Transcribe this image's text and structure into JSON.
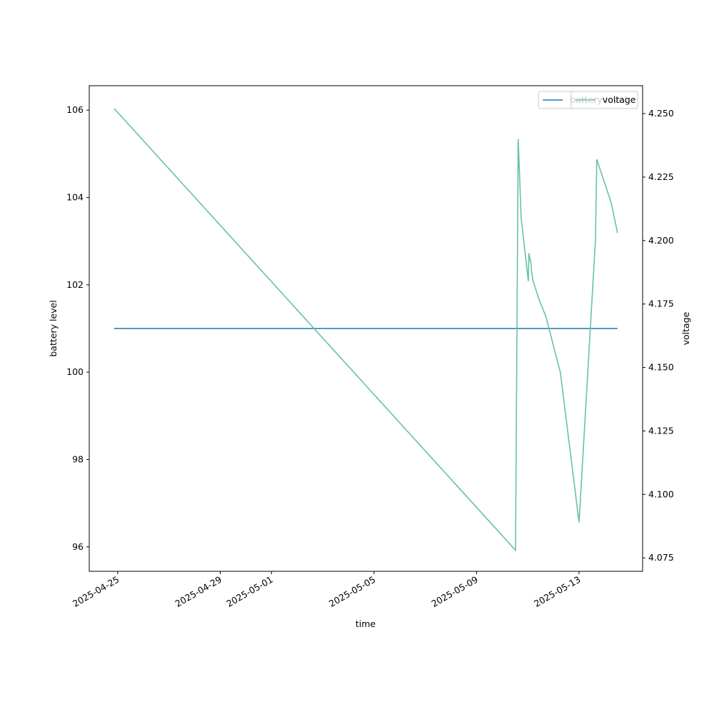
{
  "chart_data": {
    "type": "line",
    "xlabel": "time",
    "ylabel": "battery level",
    "y2label": "voltage",
    "xlim": [
      "2025-04-23T21:20",
      "2025-05-15T11:30"
    ],
    "xticks": [
      "2025-04-25",
      "2025-04-29",
      "2025-05-01",
      "2025-05-05",
      "2025-05-09",
      "2025-05-13"
    ],
    "ylim": [
      95.44,
      106.56
    ],
    "yticks": [
      96,
      98,
      100,
      102,
      104,
      106
    ],
    "y2lim": [
      4.0697,
      4.261
    ],
    "y2ticks": [
      4.075,
      {
        "value": 4.1,
        "label": "4.100"
      },
      4.125,
      {
        "value": 4.15,
        "label": "4.150"
      },
      4.175,
      {
        "value": 4.2,
        "label": "4.200"
      },
      4.225,
      {
        "value": 4.25,
        "label": "4.250"
      }
    ],
    "legend": "upper right",
    "series": [
      {
        "name": "battery level",
        "color": "#1f77b4",
        "x": [
          "2025-04-24T20:40",
          "2025-05-14T12:00"
        ],
        "values": [
          101,
          101
        ]
      },
      {
        "name": "voltage",
        "color": "#66c2a5",
        "axis": "y2",
        "x": [
          "2025-04-24T20:40",
          "2025-05-10T12:30",
          "2025-05-10T15:00",
          "2025-05-10T17:45",
          "2025-05-11T00:30",
          "2025-05-11T01:00",
          "2025-05-11T03:00",
          "2025-05-11T03:30",
          "2025-05-11T05:00",
          "2025-05-11T10:20",
          "2025-05-11T17:00",
          "2025-05-12T06:30",
          "2025-05-13T00:00",
          "2025-05-13T15:20",
          "2025-05-13T16:35",
          "2025-05-14T06:00",
          "2025-05-14T12:00"
        ],
        "values": [
          4.252,
          4.078,
          4.24,
          4.209,
          4.184,
          4.195,
          4.191,
          4.188,
          4.184,
          4.177,
          4.17,
          4.148,
          4.089,
          4.2,
          4.232,
          4.215,
          4.203
        ]
      }
    ]
  }
}
